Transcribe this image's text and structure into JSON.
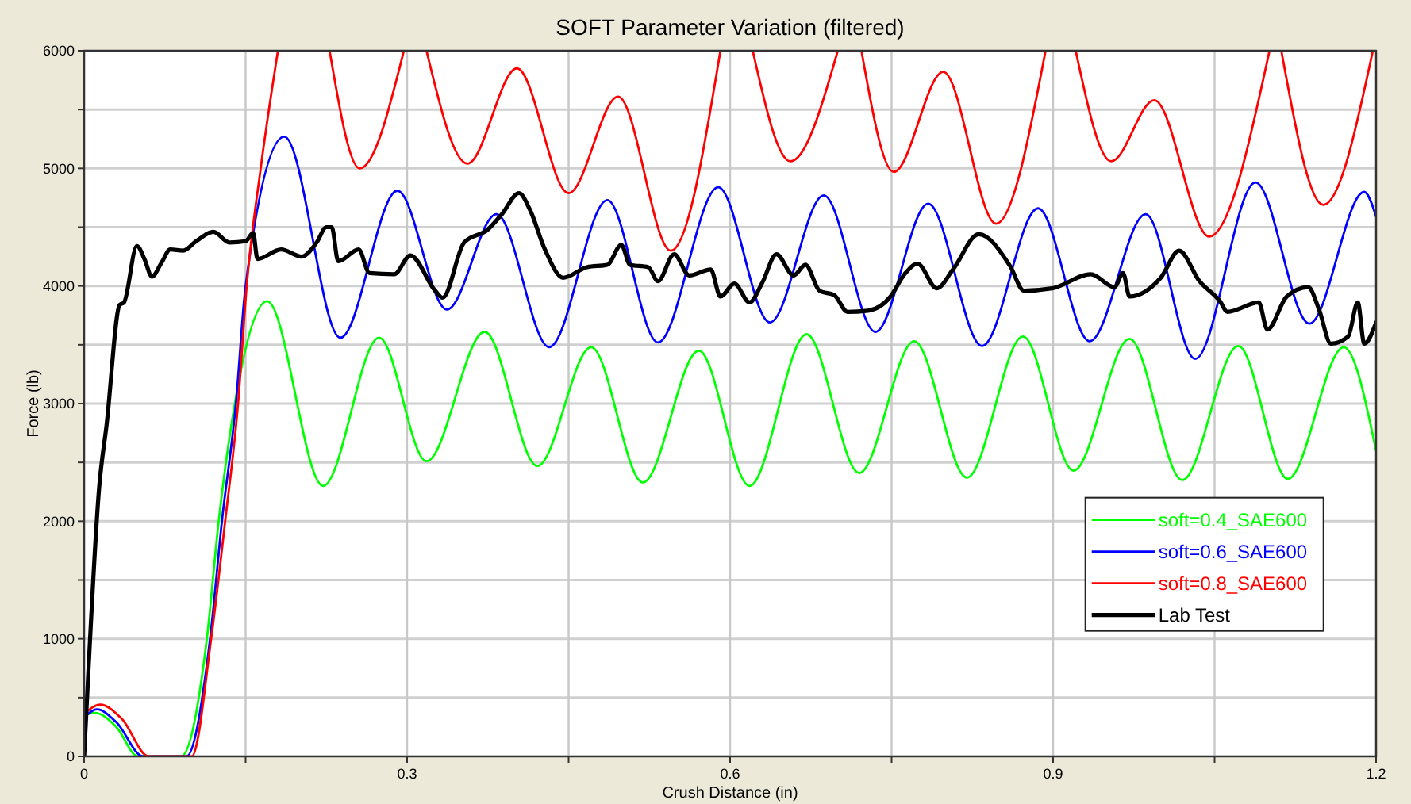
{
  "chart_data": {
    "type": "line",
    "title": "SOFT Parameter Variation (filtered)",
    "xlabel": "Crush Distance (in)",
    "ylabel": "Force (lb)",
    "xlim": [
      0,
      1.2
    ],
    "xticks": [
      0,
      {
        "value": 0.15,
        "label": null
      },
      0.3,
      {
        "value": 0.45,
        "label": null
      },
      0.6,
      {
        "value": 0.75,
        "label": null
      },
      0.9,
      {
        "value": 1.05,
        "label": null
      },
      1.2
    ],
    "ylim": [
      0,
      6000
    ],
    "yticks": [
      0,
      {
        "value": 500,
        "label": null
      },
      1000,
      {
        "value": 1500,
        "label": null
      },
      2000,
      {
        "value": 2500,
        "label": null
      },
      3000,
      {
        "value": 3500,
        "label": null
      },
      4000,
      {
        "value": 4500,
        "label": null
      },
      5000,
      {
        "value": 5500,
        "label": null
      },
      6000
    ],
    "grid": true,
    "legend": "right",
    "marker": "none",
    "line_style": "solid",
    "series": [
      {
        "name": "soft=0.4_SAE600",
        "color": "#00ff00",
        "x": [
          0,
          0.01,
          0.03,
          0.05,
          0.09,
          0.114,
          0.125,
          0.14,
          0.17,
          0.222,
          0.274,
          0.318,
          0.372,
          0.421,
          0.471,
          0.519,
          0.571,
          0.618,
          0.671,
          0.72,
          0.771,
          0.82,
          0.872,
          0.919,
          0.971,
          1.02,
          1.072,
          1.118,
          1.17,
          1.2
        ],
        "values": [
          350,
          370,
          250,
          0,
          0,
          1000,
          2000,
          3000,
          3870,
          2300,
          3560,
          2510,
          3610,
          2470,
          3480,
          2330,
          3450,
          2300,
          3590,
          2410,
          3530,
          2370,
          3570,
          2430,
          3550,
          2350,
          3490,
          2360,
          3480,
          2600
        ]
      },
      {
        "name": "soft=0.6_SAE600",
        "color": "#0000ff",
        "x": [
          0,
          0.012,
          0.03,
          0.055,
          0.095,
          0.117,
          0.128,
          0.141,
          0.15,
          0.186,
          0.238,
          0.291,
          0.337,
          0.383,
          0.432,
          0.486,
          0.533,
          0.589,
          0.637,
          0.687,
          0.735,
          0.784,
          0.834,
          0.886,
          0.934,
          0.986,
          1.032,
          1.088,
          1.138,
          1.189,
          1.2
        ],
        "values": [
          330,
          400,
          290,
          0,
          0,
          1000,
          2000,
          3000,
          4000,
          5270,
          3560,
          4810,
          3800,
          4610,
          3480,
          4730,
          3520,
          4840,
          3690,
          4770,
          3610,
          4700,
          3490,
          4660,
          3530,
          4610,
          3380,
          4880,
          3680,
          4800,
          4590
        ]
      },
      {
        "name": "soft=0.8_SAE600",
        "color": "#ff0000",
        "x": [
          0,
          0.015,
          0.035,
          0.06,
          0.1,
          0.118,
          0.131,
          0.143,
          0.151,
          0.164,
          0.18,
          0.2,
          0.228,
          0.256,
          0.297,
          0.31,
          0.318,
          0.356,
          0.402,
          0.45,
          0.496,
          0.545,
          0.591,
          0.61,
          0.621,
          0.656,
          0.7,
          0.71,
          0.722,
          0.752,
          0.798,
          0.847,
          0.893,
          0.91,
          0.921,
          0.954,
          0.994,
          1.045,
          1.101,
          1.105,
          1.112,
          1.151,
          1.197
        ],
        "values": [
          360,
          440,
          320,
          0,
          0,
          1000,
          2000,
          3000,
          4000,
          5000,
          6000,
          null,
          6000,
          5000,
          6000,
          null,
          6000,
          5040,
          5850,
          4790,
          5610,
          4300,
          6000,
          null,
          6000,
          5060,
          6000,
          null,
          6000,
          4970,
          5820,
          4530,
          6000,
          null,
          6000,
          5060,
          5580,
          4420,
          6000,
          null,
          6000,
          4690,
          6000
        ]
      },
      {
        "name": "Lab Test",
        "color": "#000000",
        "x": [
          0,
          0.003,
          0.014,
          0.021,
          0.033,
          0.037,
          0.049,
          0.056,
          0.063,
          0.072,
          0.08,
          0.092,
          0.104,
          0.12,
          0.135,
          0.15,
          0.157,
          0.161,
          0.183,
          0.202,
          0.216,
          0.225,
          0.23,
          0.236,
          0.255,
          0.265,
          0.288,
          0.303,
          0.326,
          0.333,
          0.353,
          0.375,
          0.388,
          0.404,
          0.414,
          0.428,
          0.445,
          0.467,
          0.486,
          0.499,
          0.507,
          0.524,
          0.533,
          0.548,
          0.562,
          0.582,
          0.591,
          0.604,
          0.618,
          0.63,
          0.643,
          0.659,
          0.67,
          0.683,
          0.697,
          0.709,
          0.728,
          0.749,
          0.762,
          0.774,
          0.792,
          0.807,
          0.831,
          0.86,
          0.873,
          0.899,
          0.935,
          0.957,
          0.965,
          0.971,
          1.0,
          1.017,
          1.036,
          1.055,
          1.062,
          1.091,
          1.099,
          1.117,
          1.137,
          1.147,
          1.158,
          1.174,
          1.183,
          1.189,
          1.2
        ],
        "values": [
          0,
          550,
          2290,
          2830,
          3840,
          3860,
          4340,
          4230,
          4080,
          4200,
          4310,
          4300,
          4380,
          4460,
          4370,
          4380,
          4450,
          4230,
          4310,
          4250,
          4370,
          4500,
          4500,
          4210,
          4310,
          4110,
          4100,
          4260,
          3960,
          3900,
          4370,
          4480,
          4610,
          4790,
          4650,
          4310,
          4070,
          4160,
          4180,
          4350,
          4180,
          4160,
          4040,
          4270,
          4090,
          4140,
          3910,
          4020,
          3860,
          4030,
          4270,
          4090,
          4180,
          3960,
          3920,
          3780,
          3790,
          3910,
          4100,
          4190,
          3980,
          4140,
          4440,
          4170,
          3960,
          3980,
          4100,
          3990,
          4110,
          3910,
          4070,
          4300,
          4040,
          3870,
          3780,
          3860,
          3630,
          3910,
          3990,
          3800,
          3510,
          3570,
          3860,
          3510,
          3690
        ]
      }
    ]
  }
}
